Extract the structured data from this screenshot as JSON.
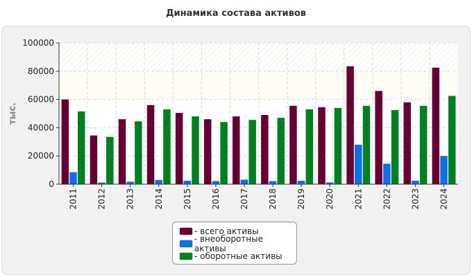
{
  "chart_data": {
    "type": "bar",
    "title": "Динамика состава активов",
    "ylabel": "тыс.",
    "xlabel": "",
    "categories": [
      "2011",
      "2012",
      "2013",
      "2014",
      "2015",
      "2016",
      "2017",
      "2018",
      "2019",
      "2020",
      "2021",
      "2022",
      "2023",
      "2024"
    ],
    "series": [
      {
        "name": "- всего активы",
        "color": "#660033",
        "values": [
          60000,
          34500,
          46000,
          56000,
          50500,
          46000,
          48000,
          49000,
          55500,
          54500,
          83500,
          66000,
          58000,
          82500
        ]
      },
      {
        "name": "- внеоборотные активы",
        "color": "#0d6fe8",
        "values": [
          8500,
          1200,
          1800,
          3000,
          2500,
          2200,
          3200,
          2200,
          2400,
          1300,
          28000,
          14500,
          2500,
          20000
        ]
      },
      {
        "name": "- оборотные активы",
        "color": "#008020",
        "values": [
          51500,
          33500,
          44500,
          53000,
          48000,
          44000,
          45500,
          47000,
          53000,
          54000,
          55500,
          52500,
          55500,
          62500
        ]
      }
    ],
    "ylim": [
      0,
      100000
    ],
    "yticks": [
      0,
      20000,
      40000,
      60000,
      80000,
      100000
    ],
    "grid": true,
    "legend_position": "bottom-center"
  }
}
